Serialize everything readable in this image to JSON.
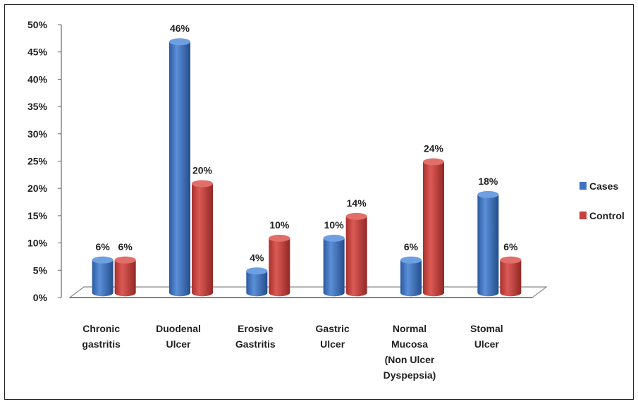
{
  "chart_data": {
    "type": "bar",
    "categories": [
      [
        "Chronic",
        "gastritis"
      ],
      [
        "Duodenal",
        "Ulcer"
      ],
      [
        "Erosive",
        "Gastritis"
      ],
      [
        "Gastric",
        "Ulcer"
      ],
      [
        "Normal",
        "Mucosa",
        "(Non Ulcer",
        "Dyspepsia)"
      ],
      [
        "Stomal",
        "Ulcer"
      ]
    ],
    "series": [
      {
        "name": "Cases",
        "color": "#3e74c4",
        "values": [
          6,
          46,
          4,
          10,
          6,
          18
        ],
        "labels": [
          "6%",
          "46%",
          "4%",
          "10%",
          "6%",
          "18%"
        ]
      },
      {
        "name": "Control",
        "color": "#c8403c",
        "values": [
          6,
          20,
          10,
          14,
          24,
          6
        ],
        "labels": [
          "6%",
          "20%",
          "10%",
          "14%",
          "24%",
          "6%"
        ]
      }
    ],
    "y_ticks": [
      "0%",
      "5%",
      "10%",
      "15%",
      "20%",
      "25%",
      "30%",
      "35%",
      "40%",
      "45%",
      "50%"
    ],
    "ylim": [
      0,
      50
    ],
    "grid": false,
    "legend_position": "right",
    "style": "3d-cylinder"
  }
}
